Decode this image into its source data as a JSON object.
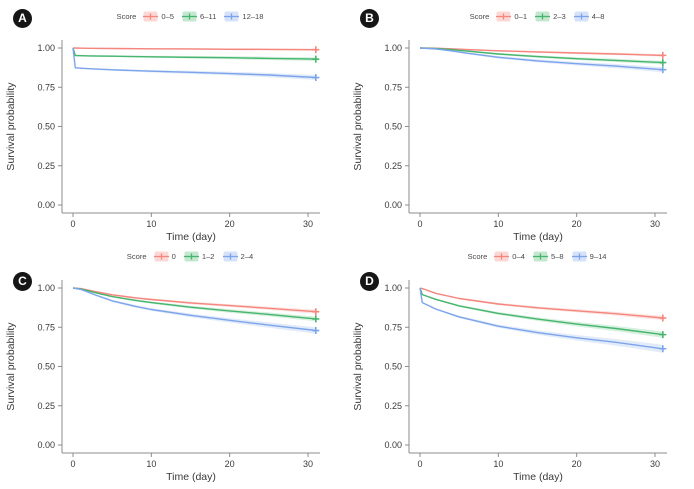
{
  "figure": {
    "background": "#ffffff",
    "axis_color": "#8c8c8c",
    "text_color": "#3a3a3a",
    "band_opacity": 0.22
  },
  "chart_data": {
    "type": "line",
    "title": "",
    "layout": "2x2 panels, legend top-center of each panel, no grid",
    "panels": [
      {
        "label": "A",
        "legend_title": "Score",
        "xlabel": "Time (day)",
        "ylabel": "Survival probability",
        "xlim": [
          0,
          31
        ],
        "ylim": [
          0,
          1
        ],
        "xticks": [
          0,
          10,
          20,
          30
        ],
        "yticks": [
          {
            "v": 1.0,
            "label": "1.00"
          },
          {
            "v": 0.75,
            "label": "0.75"
          },
          {
            "v": 0.5,
            "label": "0.50"
          },
          {
            "v": 0.25,
            "label": "0.25"
          },
          {
            "v": 0.0,
            "label": "0.00"
          }
        ],
        "series": [
          {
            "name": "0–5",
            "color": "#f4867d",
            "band_end": 0.007,
            "points": [
              [
                0,
                1.0
              ],
              [
                2,
                0.998
              ],
              [
                5,
                0.997
              ],
              [
                10,
                0.995
              ],
              [
                15,
                0.994
              ],
              [
                20,
                0.992
              ],
              [
                25,
                0.991
              ],
              [
                31,
                0.989
              ]
            ]
          },
          {
            "name": "6–11",
            "color": "#46b56d",
            "band_end": 0.012,
            "points": [
              [
                0,
                1.0
              ],
              [
                0.3,
                0.952
              ],
              [
                2,
                0.95
              ],
              [
                5,
                0.948
              ],
              [
                10,
                0.944
              ],
              [
                15,
                0.941
              ],
              [
                20,
                0.938
              ],
              [
                25,
                0.934
              ],
              [
                31,
                0.929
              ]
            ]
          },
          {
            "name": "12–18",
            "color": "#7da4ea",
            "band_end": 0.016,
            "points": [
              [
                0,
                1.0
              ],
              [
                0.3,
                0.874
              ],
              [
                2,
                0.868
              ],
              [
                5,
                0.861
              ],
              [
                10,
                0.852
              ],
              [
                15,
                0.845
              ],
              [
                20,
                0.837
              ],
              [
                25,
                0.828
              ],
              [
                31,
                0.812
              ]
            ]
          }
        ]
      },
      {
        "label": "B",
        "legend_title": "Score",
        "xlabel": "Time (day)",
        "ylabel": "Survival probability",
        "xlim": [
          0,
          31
        ],
        "ylim": [
          0,
          1
        ],
        "xticks": [
          0,
          10,
          20,
          30
        ],
        "yticks": [
          {
            "v": 1.0,
            "label": "1.00"
          },
          {
            "v": 0.75,
            "label": "0.75"
          },
          {
            "v": 0.5,
            "label": "0.50"
          },
          {
            "v": 0.25,
            "label": "0.25"
          },
          {
            "v": 0.0,
            "label": "0.00"
          }
        ],
        "series": [
          {
            "name": "0–1",
            "color": "#f4867d",
            "band_end": 0.008,
            "points": [
              [
                0,
                1.0
              ],
              [
                2,
                0.999
              ],
              [
                4,
                0.995
              ],
              [
                6,
                0.99
              ],
              [
                10,
                0.982
              ],
              [
                15,
                0.975
              ],
              [
                20,
                0.968
              ],
              [
                25,
                0.962
              ],
              [
                31,
                0.953
              ]
            ]
          },
          {
            "name": "2–3",
            "color": "#46b56d",
            "band_end": 0.012,
            "points": [
              [
                0,
                1.0
              ],
              [
                2,
                0.997
              ],
              [
                4,
                0.99
              ],
              [
                6,
                0.98
              ],
              [
                10,
                0.962
              ],
              [
                15,
                0.945
              ],
              [
                20,
                0.932
              ],
              [
                25,
                0.921
              ],
              [
                31,
                0.907
              ]
            ]
          },
          {
            "name": "4–8",
            "color": "#7da4ea",
            "band_end": 0.016,
            "points": [
              [
                0,
                1.0
              ],
              [
                2,
                0.994
              ],
              [
                4,
                0.982
              ],
              [
                6,
                0.967
              ],
              [
                10,
                0.941
              ],
              [
                15,
                0.918
              ],
              [
                20,
                0.9
              ],
              [
                25,
                0.885
              ],
              [
                31,
                0.862
              ]
            ]
          }
        ]
      },
      {
        "label": "C",
        "legend_title": "Score",
        "xlabel": "Time (day)",
        "ylabel": "Survival probability",
        "xlim": [
          0,
          31
        ],
        "ylim": [
          0,
          1
        ],
        "xticks": [
          0,
          10,
          20,
          30
        ],
        "yticks": [
          {
            "v": 1.0,
            "label": "1.00"
          },
          {
            "v": 0.75,
            "label": "0.75"
          },
          {
            "v": 0.5,
            "label": "0.50"
          },
          {
            "v": 0.25,
            "label": "0.25"
          },
          {
            "v": 0.0,
            "label": "0.00"
          }
        ],
        "series": [
          {
            "name": "0",
            "color": "#f4867d",
            "band_end": 0.012,
            "points": [
              [
                0,
                1.0
              ],
              [
                1,
                0.996
              ],
              [
                3,
                0.976
              ],
              [
                5,
                0.957
              ],
              [
                8,
                0.937
              ],
              [
                10,
                0.927
              ],
              [
                15,
                0.905
              ],
              [
                20,
                0.888
              ],
              [
                25,
                0.871
              ],
              [
                31,
                0.849
              ]
            ]
          },
          {
            "name": "1–2",
            "color": "#46b56d",
            "band_end": 0.015,
            "points": [
              [
                0,
                1.0
              ],
              [
                1,
                0.994
              ],
              [
                3,
                0.969
              ],
              [
                5,
                0.945
              ],
              [
                8,
                0.921
              ],
              [
                10,
                0.907
              ],
              [
                15,
                0.878
              ],
              [
                20,
                0.854
              ],
              [
                25,
                0.832
              ],
              [
                31,
                0.803
              ]
            ]
          },
          {
            "name": "2–4",
            "color": "#7da4ea",
            "band_end": 0.02,
            "points": [
              [
                0,
                1.0
              ],
              [
                1,
                0.991
              ],
              [
                3,
                0.953
              ],
              [
                5,
                0.918
              ],
              [
                8,
                0.883
              ],
              [
                10,
                0.863
              ],
              [
                15,
                0.826
              ],
              [
                20,
                0.794
              ],
              [
                25,
                0.764
              ],
              [
                31,
                0.729
              ]
            ]
          }
        ]
      },
      {
        "label": "D",
        "legend_title": "Score",
        "xlabel": "Time (day)",
        "ylabel": "Survival probability",
        "xlim": [
          0,
          31
        ],
        "ylim": [
          0,
          1
        ],
        "xticks": [
          0,
          10,
          20,
          30
        ],
        "yticks": [
          {
            "v": 1.0,
            "label": "1.00"
          },
          {
            "v": 0.75,
            "label": "0.75"
          },
          {
            "v": 0.5,
            "label": "0.50"
          },
          {
            "v": 0.25,
            "label": "0.25"
          },
          {
            "v": 0.0,
            "label": "0.00"
          }
        ],
        "series": [
          {
            "name": "0–4",
            "color": "#f4867d",
            "band_end": 0.014,
            "points": [
              [
                0,
                1.0
              ],
              [
                0.5,
                0.993
              ],
              [
                2,
                0.966
              ],
              [
                5,
                0.933
              ],
              [
                10,
                0.898
              ],
              [
                15,
                0.874
              ],
              [
                20,
                0.855
              ],
              [
                25,
                0.836
              ],
              [
                31,
                0.809
              ]
            ]
          },
          {
            "name": "5–8",
            "color": "#46b56d",
            "band_end": 0.02,
            "points": [
              [
                0,
                1.0
              ],
              [
                0.3,
                0.958
              ],
              [
                2,
                0.928
              ],
              [
                5,
                0.886
              ],
              [
                10,
                0.838
              ],
              [
                15,
                0.802
              ],
              [
                20,
                0.77
              ],
              [
                25,
                0.742
              ],
              [
                31,
                0.703
              ]
            ]
          },
          {
            "name": "9–14",
            "color": "#7da4ea",
            "band_end": 0.025,
            "points": [
              [
                0,
                1.0
              ],
              [
                0.3,
                0.907
              ],
              [
                2,
                0.866
              ],
              [
                5,
                0.816
              ],
              [
                10,
                0.757
              ],
              [
                15,
                0.716
              ],
              [
                20,
                0.683
              ],
              [
                25,
                0.654
              ],
              [
                31,
                0.613
              ]
            ]
          }
        ]
      }
    ]
  }
}
